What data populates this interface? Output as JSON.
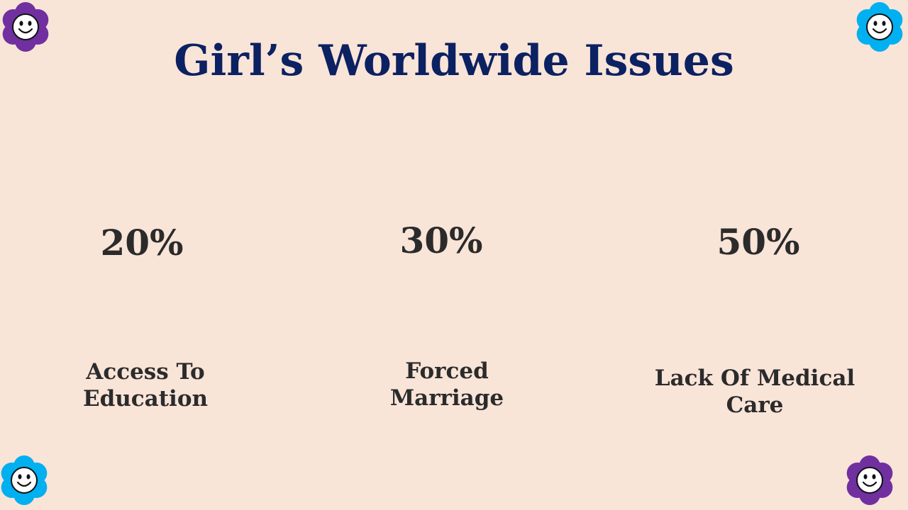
{
  "title": "Girl’s Worldwide Issues",
  "items": [
    {
      "percent_text": "20%",
      "value": 20,
      "label_line1": "Access To",
      "label_line2": "Education",
      "color": "#FDC000"
    },
    {
      "percent_text": "30%",
      "value": 30,
      "label_line1": "Forced",
      "label_line2": "Marriage",
      "color": "#92D050"
    },
    {
      "percent_text": "50%",
      "value": 50,
      "label_line1": "Lack Of Medical",
      "label_line2": "Care",
      "color": "#7030A0"
    }
  ],
  "colors": {
    "background": "#F9E4D8",
    "title": "#0B2161",
    "track": "#A6A6A6",
    "flower_purple": "#7030A0",
    "flower_blue": "#00B0F0"
  },
  "decor": {
    "corner_icons": [
      "smiley-flower-icon",
      "smiley-flower-icon",
      "smiley-flower-icon",
      "smiley-flower-icon"
    ]
  }
}
